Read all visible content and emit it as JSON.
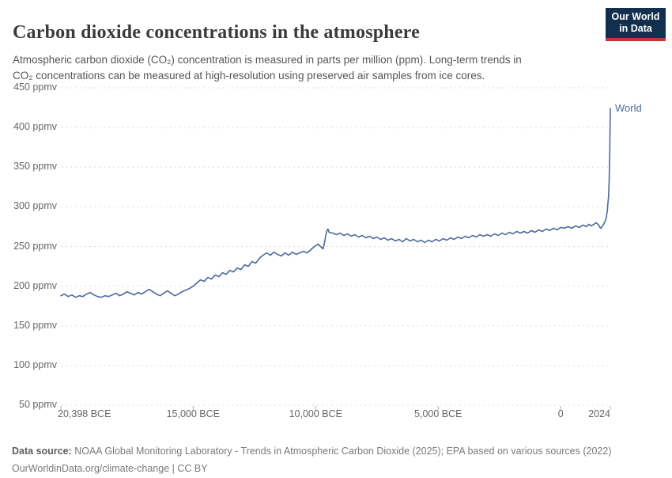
{
  "logo": {
    "line1": "Our World",
    "line2": "in Data",
    "bg_color": "#12304E",
    "stripe_color": "#C0392B"
  },
  "chart_data": {
    "type": "line",
    "title": "Carbon dioxide concentrations in the atmosphere",
    "subtitle_line1": "Atmospheric carbon dioxide (CO₂) concentration is measured in parts per million (ppm). Long-term trends in",
    "subtitle_line2": "CO₂ concentrations can be measured at high-resolution using preserved air samples from ice cores.",
    "unit": "ppmv",
    "xlim": [
      -20398,
      2024
    ],
    "ylim": [
      50,
      450
    ],
    "grid": "dashed horizontal gridlines",
    "legend_position": "end-of-line label",
    "line_color": "#4C6A9C",
    "gridline_color": "#dcdcdc",
    "tick_color": "#b0b0b0",
    "yticks": [
      {
        "value": 450,
        "label": "450 ppmv"
      },
      {
        "value": 400,
        "label": "400 ppmv"
      },
      {
        "value": 350,
        "label": "350 ppmv"
      },
      {
        "value": 300,
        "label": "300 ppmv"
      },
      {
        "value": 250,
        "label": "250 ppmv"
      },
      {
        "value": 200,
        "label": "200 ppmv"
      },
      {
        "value": 150,
        "label": "150 ppmv"
      },
      {
        "value": 100,
        "label": "100 ppmv"
      },
      {
        "value": 50,
        "label": "50 ppmv"
      }
    ],
    "xticks": [
      {
        "value": -20398,
        "label": "20,398 BCE"
      },
      {
        "value": -15000,
        "label": "15,000 BCE"
      },
      {
        "value": -10000,
        "label": "10,000 BCE"
      },
      {
        "value": -5000,
        "label": "5,000 BCE"
      },
      {
        "value": 0,
        "label": "0"
      },
      {
        "value": 2024,
        "label": "2024"
      }
    ],
    "series": [
      {
        "name": "World",
        "points": [
          [
            -20398,
            188
          ],
          [
            -20250,
            190
          ],
          [
            -20100,
            187
          ],
          [
            -19950,
            189
          ],
          [
            -19800,
            186
          ],
          [
            -19650,
            188
          ],
          [
            -19500,
            187
          ],
          [
            -19350,
            190
          ],
          [
            -19200,
            192
          ],
          [
            -19050,
            189
          ],
          [
            -18900,
            187
          ],
          [
            -18750,
            186
          ],
          [
            -18600,
            188
          ],
          [
            -18450,
            187
          ],
          [
            -18300,
            189
          ],
          [
            -18150,
            191
          ],
          [
            -18000,
            188
          ],
          [
            -17850,
            190
          ],
          [
            -17700,
            193
          ],
          [
            -17550,
            191
          ],
          [
            -17400,
            189
          ],
          [
            -17250,
            192
          ],
          [
            -17100,
            190
          ],
          [
            -16950,
            193
          ],
          [
            -16800,
            196
          ],
          [
            -16650,
            193
          ],
          [
            -16500,
            190
          ],
          [
            -16350,
            188
          ],
          [
            -16200,
            191
          ],
          [
            -16050,
            194
          ],
          [
            -15900,
            191
          ],
          [
            -15750,
            188
          ],
          [
            -15600,
            190
          ],
          [
            -15450,
            193
          ],
          [
            -15300,
            195
          ],
          [
            -15150,
            197
          ],
          [
            -15000,
            200
          ],
          [
            -14850,
            204
          ],
          [
            -14700,
            208
          ],
          [
            -14550,
            206
          ],
          [
            -14400,
            211
          ],
          [
            -14250,
            209
          ],
          [
            -14100,
            214
          ],
          [
            -13950,
            212
          ],
          [
            -13800,
            217
          ],
          [
            -13650,
            215
          ],
          [
            -13500,
            220
          ],
          [
            -13350,
            218
          ],
          [
            -13200,
            223
          ],
          [
            -13050,
            221
          ],
          [
            -12900,
            227
          ],
          [
            -12750,
            225
          ],
          [
            -12600,
            231
          ],
          [
            -12450,
            229
          ],
          [
            -12300,
            235
          ],
          [
            -12150,
            239
          ],
          [
            -12000,
            242
          ],
          [
            -11850,
            239
          ],
          [
            -11700,
            243
          ],
          [
            -11550,
            240
          ],
          [
            -11400,
            238
          ],
          [
            -11250,
            242
          ],
          [
            -11100,
            239
          ],
          [
            -10950,
            243
          ],
          [
            -10800,
            240
          ],
          [
            -10650,
            242
          ],
          [
            -10500,
            244
          ],
          [
            -10350,
            242
          ],
          [
            -10200,
            246
          ],
          [
            -10050,
            250
          ],
          [
            -9900,
            253
          ],
          [
            -9800,
            250
          ],
          [
            -9700,
            247
          ],
          [
            -9650,
            253
          ],
          [
            -9600,
            262
          ],
          [
            -9550,
            269
          ],
          [
            -9500,
            272
          ],
          [
            -9450,
            268
          ],
          [
            -9300,
            267
          ],
          [
            -9150,
            265
          ],
          [
            -9000,
            267
          ],
          [
            -8850,
            264
          ],
          [
            -8700,
            266
          ],
          [
            -8550,
            263
          ],
          [
            -8400,
            265
          ],
          [
            -8250,
            262
          ],
          [
            -8100,
            264
          ],
          [
            -7950,
            261
          ],
          [
            -7800,
            263
          ],
          [
            -7650,
            260
          ],
          [
            -7500,
            262
          ],
          [
            -7350,
            259
          ],
          [
            -7200,
            261
          ],
          [
            -7050,
            258
          ],
          [
            -6900,
            260
          ],
          [
            -6750,
            257
          ],
          [
            -6600,
            259
          ],
          [
            -6450,
            256
          ],
          [
            -6300,
            260
          ],
          [
            -6150,
            257
          ],
          [
            -6000,
            259
          ],
          [
            -5850,
            256
          ],
          [
            -5700,
            258
          ],
          [
            -5550,
            255
          ],
          [
            -5400,
            258
          ],
          [
            -5250,
            256
          ],
          [
            -5100,
            259
          ],
          [
            -4950,
            257
          ],
          [
            -4800,
            260
          ],
          [
            -4650,
            258
          ],
          [
            -4500,
            261
          ],
          [
            -4350,
            259
          ],
          [
            -4200,
            262
          ],
          [
            -4050,
            260
          ],
          [
            -3900,
            263
          ],
          [
            -3750,
            261
          ],
          [
            -3600,
            264
          ],
          [
            -3450,
            262
          ],
          [
            -3300,
            265
          ],
          [
            -3150,
            263
          ],
          [
            -3000,
            265
          ],
          [
            -2850,
            263
          ],
          [
            -2700,
            266
          ],
          [
            -2550,
            264
          ],
          [
            -2400,
            267
          ],
          [
            -2250,
            265
          ],
          [
            -2100,
            268
          ],
          [
            -1950,
            266
          ],
          [
            -1800,
            269
          ],
          [
            -1650,
            267
          ],
          [
            -1500,
            269
          ],
          [
            -1350,
            267
          ],
          [
            -1200,
            270
          ],
          [
            -1050,
            268
          ],
          [
            -900,
            271
          ],
          [
            -750,
            269
          ],
          [
            -600,
            272
          ],
          [
            -450,
            270
          ],
          [
            -300,
            273
          ],
          [
            -150,
            271
          ],
          [
            0,
            274
          ],
          [
            150,
            273
          ],
          [
            300,
            275
          ],
          [
            450,
            273
          ],
          [
            600,
            276
          ],
          [
            750,
            274
          ],
          [
            900,
            277
          ],
          [
            1050,
            275
          ],
          [
            1150,
            278
          ],
          [
            1250,
            276
          ],
          [
            1350,
            278
          ],
          [
            1450,
            280
          ],
          [
            1550,
            277
          ],
          [
            1600,
            274
          ],
          [
            1650,
            273
          ],
          [
            1700,
            276
          ],
          [
            1750,
            278
          ],
          [
            1800,
            281
          ],
          [
            1850,
            285
          ],
          [
            1900,
            295
          ],
          [
            1925,
            304
          ],
          [
            1950,
            312
          ],
          [
            1975,
            332
          ],
          [
            2000,
            370
          ],
          [
            2012,
            394
          ],
          [
            2024,
            424
          ]
        ]
      }
    ]
  },
  "footer": {
    "source_label": "Data source:",
    "source_text": " NOAA Global Monitoring Laboratory - Trends in Atmospheric Carbon Dioxide (2025); EPA based on various sources (2022)",
    "link": "OurWorldinData.org/climate-change",
    "license_suffix": " | CC BY"
  }
}
